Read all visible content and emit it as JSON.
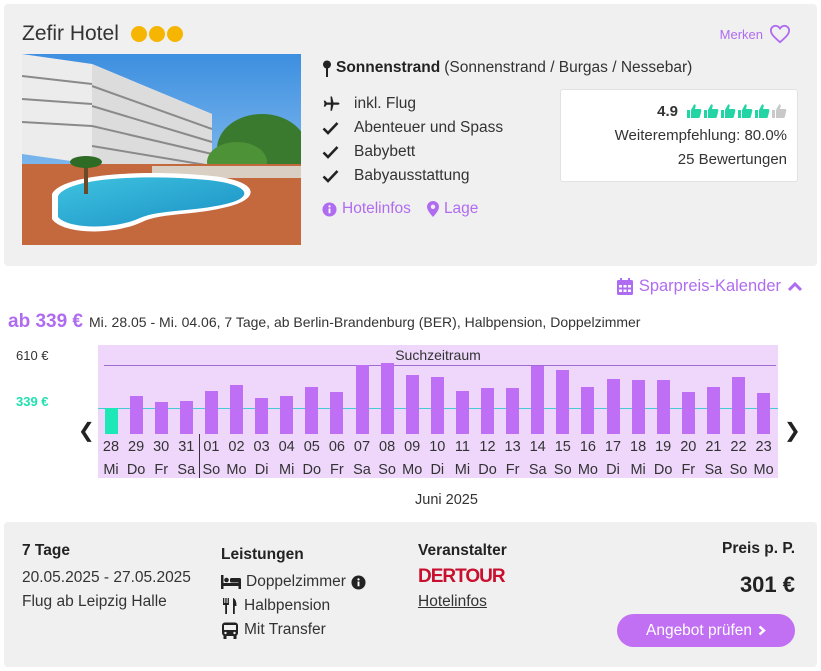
{
  "hotel": {
    "name": "Zefir Hotel",
    "stars": 3,
    "star_color": "#f6b500",
    "merken_label": "Merken",
    "location_name": "Sonnenstrand",
    "location_detail": "(Sonnenstrand / Burgas / Nessebar)",
    "features": [
      {
        "icon": "plane-icon",
        "label": "inkl. Flug"
      },
      {
        "icon": "check-icon",
        "label": "Abenteuer und Spass"
      },
      {
        "icon": "check-icon",
        "label": "Babybett"
      },
      {
        "icon": "check-icon",
        "label": "Babyausstattung"
      }
    ],
    "hotelinfos_label": "Hotelinfos",
    "lage_label": "Lage"
  },
  "rating": {
    "score": "4.9",
    "thumbs_filled": 5,
    "thumbs_total": 6,
    "recommendation": "Weiterempfehlung: 80.0%",
    "reviews": "25 Bewertungen",
    "thumb_color": "#23d4a4"
  },
  "calendar": {
    "toggle_label": "Sparpreis-Kalender",
    "price_from": "ab 339 €",
    "price_desc": "Mi. 28.05 - Mi. 04.06, 7 Tage, ab Berlin-Brandenburg (BER), Halbpension, Doppelzimmer",
    "y_max_label": "610 €",
    "y_min_label": "339 €",
    "range_label": "Suchzeitraum",
    "month_label": "Juni 2025",
    "accent": "#b06cf0",
    "bar_color": "#bf6ff5",
    "selected_color": "#1fe8b8"
  },
  "chart_data": {
    "type": "bar",
    "ylim": [
      0,
      610
    ],
    "reference_value": 339,
    "selected_index": 0,
    "days": [
      {
        "d": "28",
        "w": "Mi",
        "v": 339
      },
      {
        "d": "29",
        "w": "Do",
        "v": 410
      },
      {
        "d": "30",
        "w": "Fr",
        "v": 375
      },
      {
        "d": "31",
        "w": "Sa",
        "v": 380
      },
      {
        "d": "01",
        "w": "So",
        "v": 440
      },
      {
        "d": "02",
        "w": "Mo",
        "v": 480
      },
      {
        "d": "03",
        "w": "Di",
        "v": 400
      },
      {
        "d": "04",
        "w": "Mi",
        "v": 410
      },
      {
        "d": "05",
        "w": "Do",
        "v": 465
      },
      {
        "d": "06",
        "w": "Fr",
        "v": 435
      },
      {
        "d": "07",
        "w": "Sa",
        "v": 600
      },
      {
        "d": "08",
        "w": "So",
        "v": 610
      },
      {
        "d": "09",
        "w": "Mo",
        "v": 540
      },
      {
        "d": "10",
        "w": "Di",
        "v": 525
      },
      {
        "d": "11",
        "w": "Mi",
        "v": 440
      },
      {
        "d": "12",
        "w": "Do",
        "v": 460
      },
      {
        "d": "13",
        "w": "Fr",
        "v": 460
      },
      {
        "d": "14",
        "w": "Sa",
        "v": 590
      },
      {
        "d": "15",
        "w": "So",
        "v": 570
      },
      {
        "d": "16",
        "w": "Mo",
        "v": 465
      },
      {
        "d": "17",
        "w": "Di",
        "v": 515
      },
      {
        "d": "18",
        "w": "Mi",
        "v": 505
      },
      {
        "d": "19",
        "w": "Do",
        "v": 510
      },
      {
        "d": "20",
        "w": "Fr",
        "v": 435
      },
      {
        "d": "21",
        "w": "Sa",
        "v": 465
      },
      {
        "d": "22",
        "w": "So",
        "v": 525
      },
      {
        "d": "23",
        "w": "Mo",
        "v": 430
      }
    ]
  },
  "offer": {
    "duration": "7 Tage",
    "dates": "20.05.2025 - 27.05.2025",
    "flight": "Flug ab Leipzig Halle",
    "leistungen_title": "Leistungen",
    "leistungen": [
      {
        "icon": "bed-icon",
        "label": "Doppelzimmer"
      },
      {
        "icon": "cutlery-icon",
        "label": "Halbpension"
      },
      {
        "icon": "bus-icon",
        "label": "Mit Transfer"
      }
    ],
    "veranstalter_title": "Veranstalter",
    "veranstalter_logo": "DERTOUR",
    "veranstalter_link": "Hotelinfos",
    "price_title": "Preis p. P.",
    "price": "301 €",
    "cta_label": "Angebot prüfen"
  }
}
